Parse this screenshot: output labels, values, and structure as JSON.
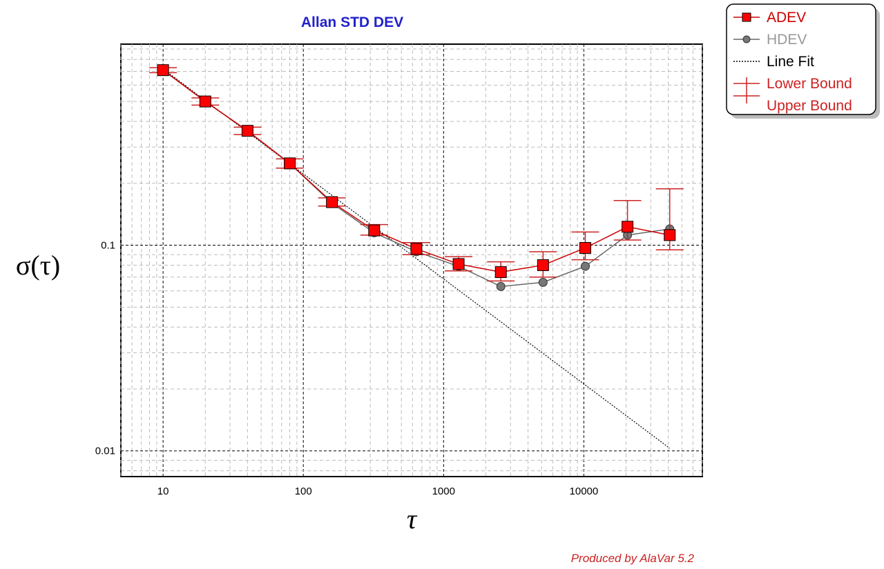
{
  "chart_data": {
    "type": "line",
    "title": "Allan STD DEV",
    "xlabel": "τ",
    "ylabel": "σ(τ)",
    "x_scale": "log",
    "y_scale": "log",
    "xlim": [
      5,
      70000
    ],
    "ylim": [
      0.0075,
      0.95
    ],
    "x_ticks": [
      10,
      100,
      1000,
      10000
    ],
    "x_tick_labels": [
      "10",
      "100",
      "1000",
      "10000"
    ],
    "y_ticks": [
      0.1,
      0.01
    ],
    "y_tick_labels": [
      "0.1",
      "0.01"
    ],
    "grid": true,
    "legend_position": "top-right",
    "credit": "Produced by AlaVar 5.2",
    "colors": {
      "adev": "#cc0000",
      "hdev": "#666666",
      "fit": "#000000",
      "bounds": "#cc2222",
      "title": "#2222cc"
    },
    "series": [
      {
        "name": "ADEV",
        "x": [
          10,
          20,
          40,
          80,
          160,
          320,
          640,
          1280,
          2560,
          5120,
          10240,
          20480,
          40960
        ],
        "y": [
          0.71,
          0.5,
          0.36,
          0.25,
          0.162,
          0.118,
          0.096,
          0.081,
          0.074,
          0.08,
          0.097,
          0.123,
          0.112
        ]
      },
      {
        "name": "HDEV",
        "x": [
          10,
          20,
          40,
          80,
          160,
          320,
          640,
          1280,
          2560,
          5120,
          10240,
          20480,
          40960
        ],
        "y": [
          0.71,
          0.5,
          0.36,
          0.25,
          0.16,
          0.115,
          0.093,
          0.079,
          0.063,
          0.066,
          0.079,
          0.112,
          0.12
        ]
      },
      {
        "name": "Line Fit",
        "x": [
          10,
          40960
        ],
        "y": [
          0.72,
          0.0103
        ]
      }
    ],
    "bounds": {
      "x": [
        10,
        20,
        40,
        80,
        160,
        320,
        640,
        1280,
        2560,
        5120,
        10240,
        20480,
        40960
      ],
      "lower": [
        0.69,
        0.48,
        0.345,
        0.237,
        0.155,
        0.112,
        0.09,
        0.075,
        0.067,
        0.07,
        0.085,
        0.106,
        0.095
      ],
      "upper": [
        0.73,
        0.52,
        0.375,
        0.263,
        0.17,
        0.126,
        0.103,
        0.088,
        0.083,
        0.093,
        0.116,
        0.165,
        0.188
      ]
    },
    "legend": {
      "adev": "ADEV",
      "hdev": "HDEV",
      "fit": "Line Fit",
      "lower": "Lower Bound",
      "upper": "Upper Bound"
    }
  }
}
